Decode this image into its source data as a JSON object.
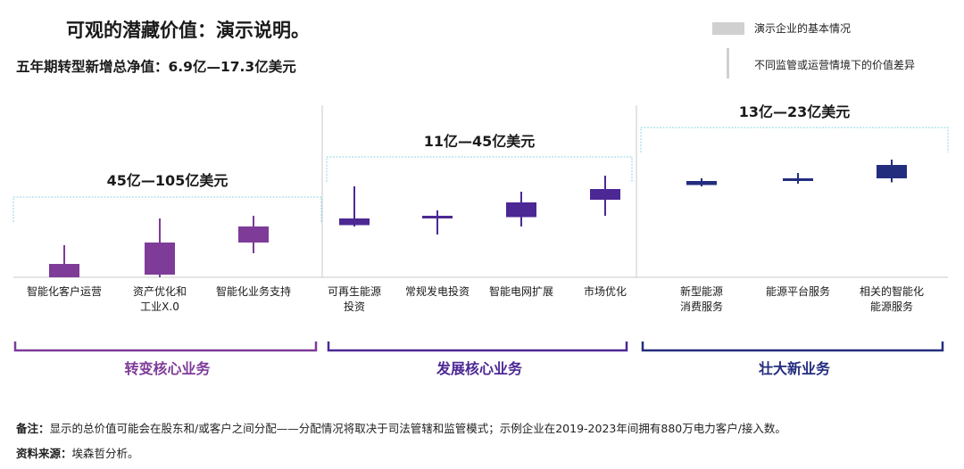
{
  "title": "可观的潜藏价值：演示说明。",
  "subtitle": "五年期转型新增总净值：6.9亿—17.3亿美元",
  "legend": {
    "box_label": "演示企业的基本情况",
    "whisker_label": "不同监管或运营情境下的价值差异"
  },
  "footnote": {
    "note_label": "备注：",
    "note_text": "显示的总价值可能会在股东和/或客户之间分配——分配情况将取决于司法管辖和监管模式；示例企业在2019-2023年间拥有880万电力客户/接入数。",
    "source_label": "资料来源：",
    "source_text": "埃森哲分析。"
  },
  "colors": {
    "light_purple": "#7e3b98",
    "mid_purple": "#4c2894",
    "dark_navy": "#232d7e",
    "bracket": "#8fd3e6",
    "divider": "#c9c9c9",
    "legend_box": "#d0d0d0"
  },
  "chart_data": {
    "type": "candlestick",
    "groups": [
      {
        "name": "转变核心业务",
        "range_label": "45亿—105亿美元",
        "color": "light_purple",
        "items": [
          {
            "label": "智能化客户运营",
            "box": [
              0.0,
              0.5
            ],
            "whisker": [
              0.0,
              1.2
            ]
          },
          {
            "label": "资产优化和\n工业X.0",
            "box": [
              0.1,
              1.3
            ],
            "whisker": [
              0.0,
              2.2
            ]
          },
          {
            "label": "智能化业务支持",
            "box": [
              1.3,
              1.9
            ],
            "whisker": [
              0.9,
              2.3
            ]
          }
        ]
      },
      {
        "name": "发展核心业务",
        "range_label": "11亿—45亿美元",
        "color": "mid_purple",
        "items": [
          {
            "label": "可再生能源\n投资",
            "box": [
              1.95,
              2.2
            ],
            "whisker": [
              1.9,
              3.4
            ]
          },
          {
            "label": "常规发电投资",
            "box": [
              2.2,
              2.3
            ],
            "whisker": [
              1.6,
              2.5
            ]
          },
          {
            "label": "智能电网扩展",
            "box": [
              2.25,
              2.8
            ],
            "whisker": [
              1.9,
              3.2
            ]
          },
          {
            "label": "市场优化",
            "box": [
              2.9,
              3.3
            ],
            "whisker": [
              2.3,
              3.8
            ]
          }
        ]
      },
      {
        "name": "壮大新业务",
        "range_label": "13亿—23亿美元",
        "color": "dark_navy",
        "items": [
          {
            "label": "新型能源\n消费服务",
            "box": [
              3.45,
              3.6
            ],
            "whisker": [
              3.4,
              3.7
            ]
          },
          {
            "label": "能源平台服务",
            "box": [
              3.6,
              3.7
            ],
            "whisker": [
              3.5,
              3.9
            ]
          },
          {
            "label": "相关的智能化\n能源服务",
            "box": [
              3.7,
              4.2
            ],
            "whisker": [
              3.55,
              4.4
            ]
          }
        ]
      }
    ],
    "y_axis_shown": false,
    "legend_position": "top-right"
  }
}
